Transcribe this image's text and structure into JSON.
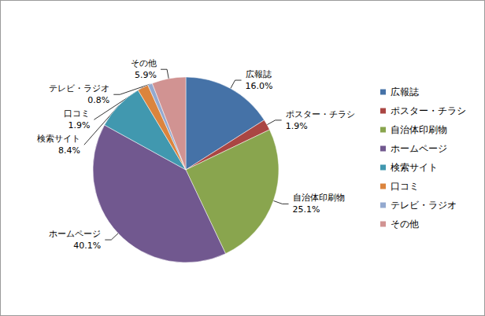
{
  "chart_data": {
    "type": "pie",
    "categories": [
      "広報誌",
      "ポスター・チラシ",
      "自治体印刷物",
      "ホームページ",
      "検索サイト",
      "口コミ",
      "テレビ・ラジオ",
      "その他"
    ],
    "values": [
      16.0,
      1.9,
      25.1,
      40.1,
      8.4,
      1.9,
      0.8,
      5.9
    ],
    "value_labels": [
      "16.0%",
      "1.9%",
      "25.1%",
      "40.1%",
      "8.4%",
      "1.9%",
      "0.8%",
      "5.9%"
    ],
    "colors": [
      "#4572A7",
      "#AA4643",
      "#89A54E",
      "#71588F",
      "#4198AF",
      "#DB843D",
      "#93A9CF",
      "#D19392"
    ],
    "legend": "right",
    "data_labels": true
  }
}
